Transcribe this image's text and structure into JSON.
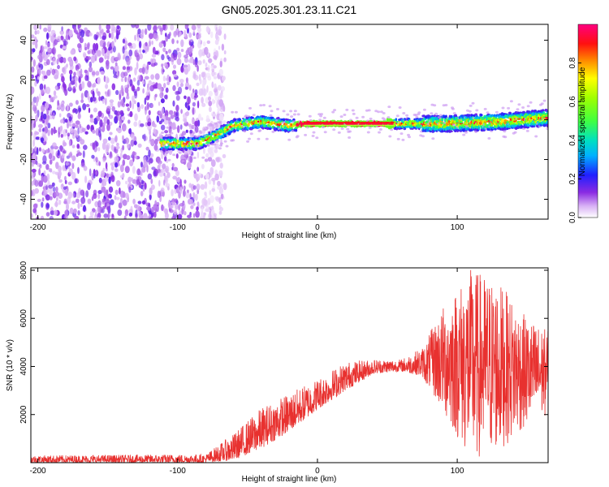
{
  "title": "GN05.2025.301.23.11.C21",
  "chart_data": [
    {
      "type": "heatmap",
      "title": "GN05.2025.301.23.11.C21",
      "xlabel": "Height of straight line (km)",
      "ylabel": "Frequency (Hz)",
      "xlim": [
        -205,
        165
      ],
      "ylim": [
        -50,
        48
      ],
      "xticks": [
        -200,
        -100,
        0,
        100
      ],
      "yticks": [
        -40,
        -20,
        0,
        20,
        40
      ],
      "colorbar": {
        "label": "Normalized spectral amplitude",
        "range": [
          0,
          1
        ],
        "ticks": [
          0.0,
          0.2,
          0.4,
          0.6,
          0.8
        ],
        "tick_labels": [
          "0.0",
          "0.2",
          "0.4",
          "0.6",
          "0.8"
        ]
      },
      "ridge": {
        "points": [
          {
            "x": -110,
            "y": -12
          },
          {
            "x": -85,
            "y": -12
          },
          {
            "x": -70,
            "y": -7
          },
          {
            "x": -60,
            "y": -3
          },
          {
            "x": -40,
            "y": -1
          },
          {
            "x": -20,
            "y": -3
          },
          {
            "x": -10,
            "y": -2
          },
          {
            "x": 0,
            "y": -2
          },
          {
            "x": 55,
            "y": -2
          },
          {
            "x": 90,
            "y": -2
          },
          {
            "x": 130,
            "y": -1
          },
          {
            "x": 165,
            "y": 1
          }
        ]
      },
      "noise_region": {
        "x_from": -205,
        "x_to": -70
      }
    },
    {
      "type": "line",
      "xlabel": "Height of straight line (km)",
      "ylabel": "SNR (10 * v/v)",
      "xlim": [
        -205,
        165
      ],
      "ylim": [
        0,
        8100
      ],
      "xticks": [
        -200,
        -100,
        0,
        100
      ],
      "yticks": [
        2000,
        4000,
        6000,
        8000
      ],
      "series": [
        {
          "name": "SNR",
          "color": "#e8312f",
          "envelope": [
            {
              "x": -205,
              "low": 0,
              "high": 300
            },
            {
              "x": -80,
              "low": 0,
              "high": 350
            },
            {
              "x": -60,
              "low": 100,
              "high": 1200
            },
            {
              "x": -40,
              "low": 600,
              "high": 2300
            },
            {
              "x": -20,
              "low": 1300,
              "high": 2900
            },
            {
              "x": 0,
              "low": 2200,
              "high": 3500
            },
            {
              "x": 20,
              "low": 3000,
              "high": 4200
            },
            {
              "x": 40,
              "low": 3700,
              "high": 4300
            },
            {
              "x": 60,
              "low": 3800,
              "high": 4300
            },
            {
              "x": 75,
              "low": 3600,
              "high": 4800
            },
            {
              "x": 90,
              "low": 2000,
              "high": 6500
            },
            {
              "x": 110,
              "low": 0,
              "high": 8100
            },
            {
              "x": 130,
              "low": 500,
              "high": 7500
            },
            {
              "x": 150,
              "low": 1500,
              "high": 6000
            },
            {
              "x": 165,
              "low": 2000,
              "high": 5500
            }
          ]
        }
      ]
    }
  ]
}
